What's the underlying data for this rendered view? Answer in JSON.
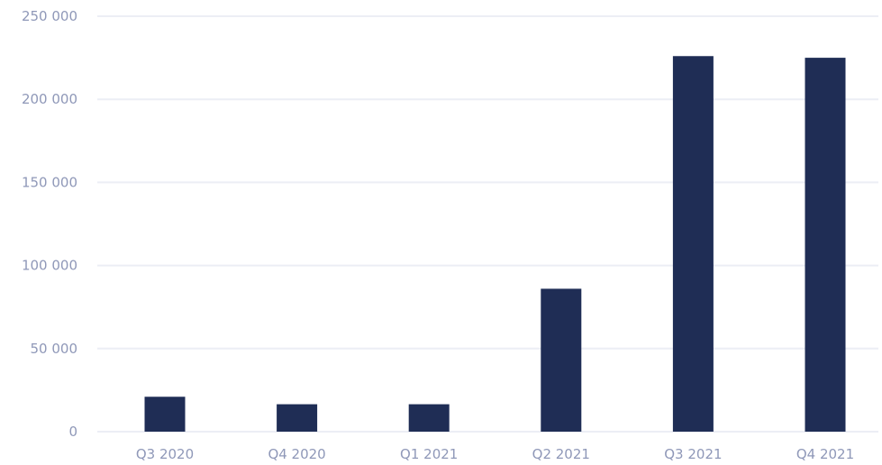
{
  "chart_data": {
    "type": "bar",
    "categories": [
      "Q3 2020",
      "Q4 2020",
      "Q1 2021",
      "Q2 2021",
      "Q3 2021",
      "Q4 2021"
    ],
    "values": [
      21000,
      16500,
      16500,
      86000,
      226000,
      225000
    ],
    "ylim": [
      0,
      250000
    ],
    "yticks": [
      0,
      50000,
      100000,
      150000,
      200000,
      250000
    ],
    "ytick_labels": [
      "0",
      "50 000",
      "100 000",
      "150 000",
      "200 000",
      "250 000"
    ],
    "grid": true,
    "bar_color": "#1f2d55",
    "grid_color": "#eceef5",
    "label_color": "#8f98b8"
  }
}
